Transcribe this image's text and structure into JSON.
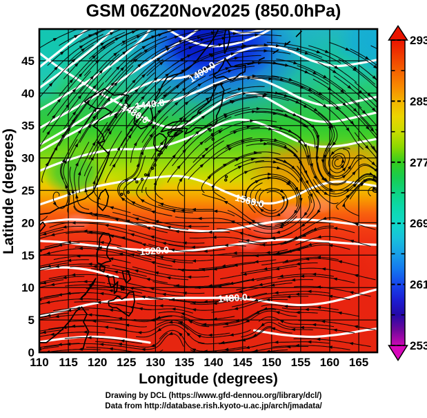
{
  "title": "GSM 06Z20Nov2025 (850.0hPa)",
  "footer": {
    "line1": "Drawing by DCL (https://www.gfd-dennou.org/library/dcl/)",
    "line2": "Data from http://database.rish.kyoto-u.ac.jp/arch/jmadata/"
  },
  "chart_data": {
    "type": "heatmap",
    "title": "GSM 06Z20Nov2025 (850.0hPa)",
    "xlabel": "Longitude (degrees)",
    "ylabel": "Latitude  (degrees)",
    "xlim": [
      110,
      168.2
    ],
    "ylim": [
      0,
      49.9
    ],
    "x_ticks": [
      110,
      115,
      120,
      125,
      130,
      135,
      140,
      145,
      150,
      155,
      160,
      165
    ],
    "y_ticks": [
      0,
      5,
      10,
      15,
      20,
      25,
      30,
      35,
      40,
      45
    ],
    "grid": true,
    "grid_interval_deg": 5,
    "layers": {
      "shading": {
        "variable": "temperature (K)",
        "style": "rainbow color fill"
      },
      "contours": {
        "variable": "geopotential height (m)",
        "color": "#ffffff",
        "interval": 40
      },
      "streamlines": {
        "variable": "horizontal wind",
        "color": "#000000",
        "style": "arrows"
      }
    },
    "colorbar": {
      "orientation": "vertical",
      "ticks": [
        293,
        285,
        277,
        269,
        261,
        253
      ],
      "minor_ticks": [
        289,
        281,
        273,
        265,
        257
      ],
      "range": [
        253,
        293
      ],
      "over_color": "#ea1400",
      "under_color": "#d808bc",
      "stops": [
        {
          "v": 293,
          "c": "#ea1400"
        },
        {
          "v": 290,
          "c": "#f24e00"
        },
        {
          "v": 287,
          "c": "#f88800"
        },
        {
          "v": 285,
          "c": "#f4b400"
        },
        {
          "v": 283,
          "c": "#ecd400"
        },
        {
          "v": 281,
          "c": "#c8dc00"
        },
        {
          "v": 279,
          "c": "#8cd800"
        },
        {
          "v": 277,
          "c": "#34cc1e"
        },
        {
          "v": 275,
          "c": "#18cc50"
        },
        {
          "v": 273,
          "c": "#0ed484"
        },
        {
          "v": 271,
          "c": "#0cd8ac"
        },
        {
          "v": 269,
          "c": "#10d8c8"
        },
        {
          "v": 267,
          "c": "#18c0dc"
        },
        {
          "v": 265,
          "c": "#18a0e8"
        },
        {
          "v": 263,
          "c": "#1478ee"
        },
        {
          "v": 261,
          "c": "#1646ec"
        },
        {
          "v": 259,
          "c": "#1c1ed4"
        },
        {
          "v": 257,
          "c": "#2408a8"
        },
        {
          "v": 255,
          "c": "#70089c"
        },
        {
          "v": 253,
          "c": "#cc08b4"
        }
      ]
    },
    "contour_labels": [
      {
        "text": "1400.0",
        "lon": 138.0,
        "lat": 43.3,
        "angle": -33
      },
      {
        "text": "1480.0",
        "lon": 126.5,
        "lat": 36.9,
        "angle": 32
      },
      {
        "text": "1440.0",
        "lon": 129.0,
        "lat": 38.3,
        "angle": -8
      },
      {
        "text": "1560.0",
        "lon": 146.2,
        "lat": 23.4,
        "angle": 14
      },
      {
        "text": "1520.0",
        "lon": 129.8,
        "lat": 15.7,
        "angle": -4
      },
      {
        "text": "1480.0",
        "lon": 143.3,
        "lat": 8.4,
        "angle": -4
      }
    ]
  }
}
